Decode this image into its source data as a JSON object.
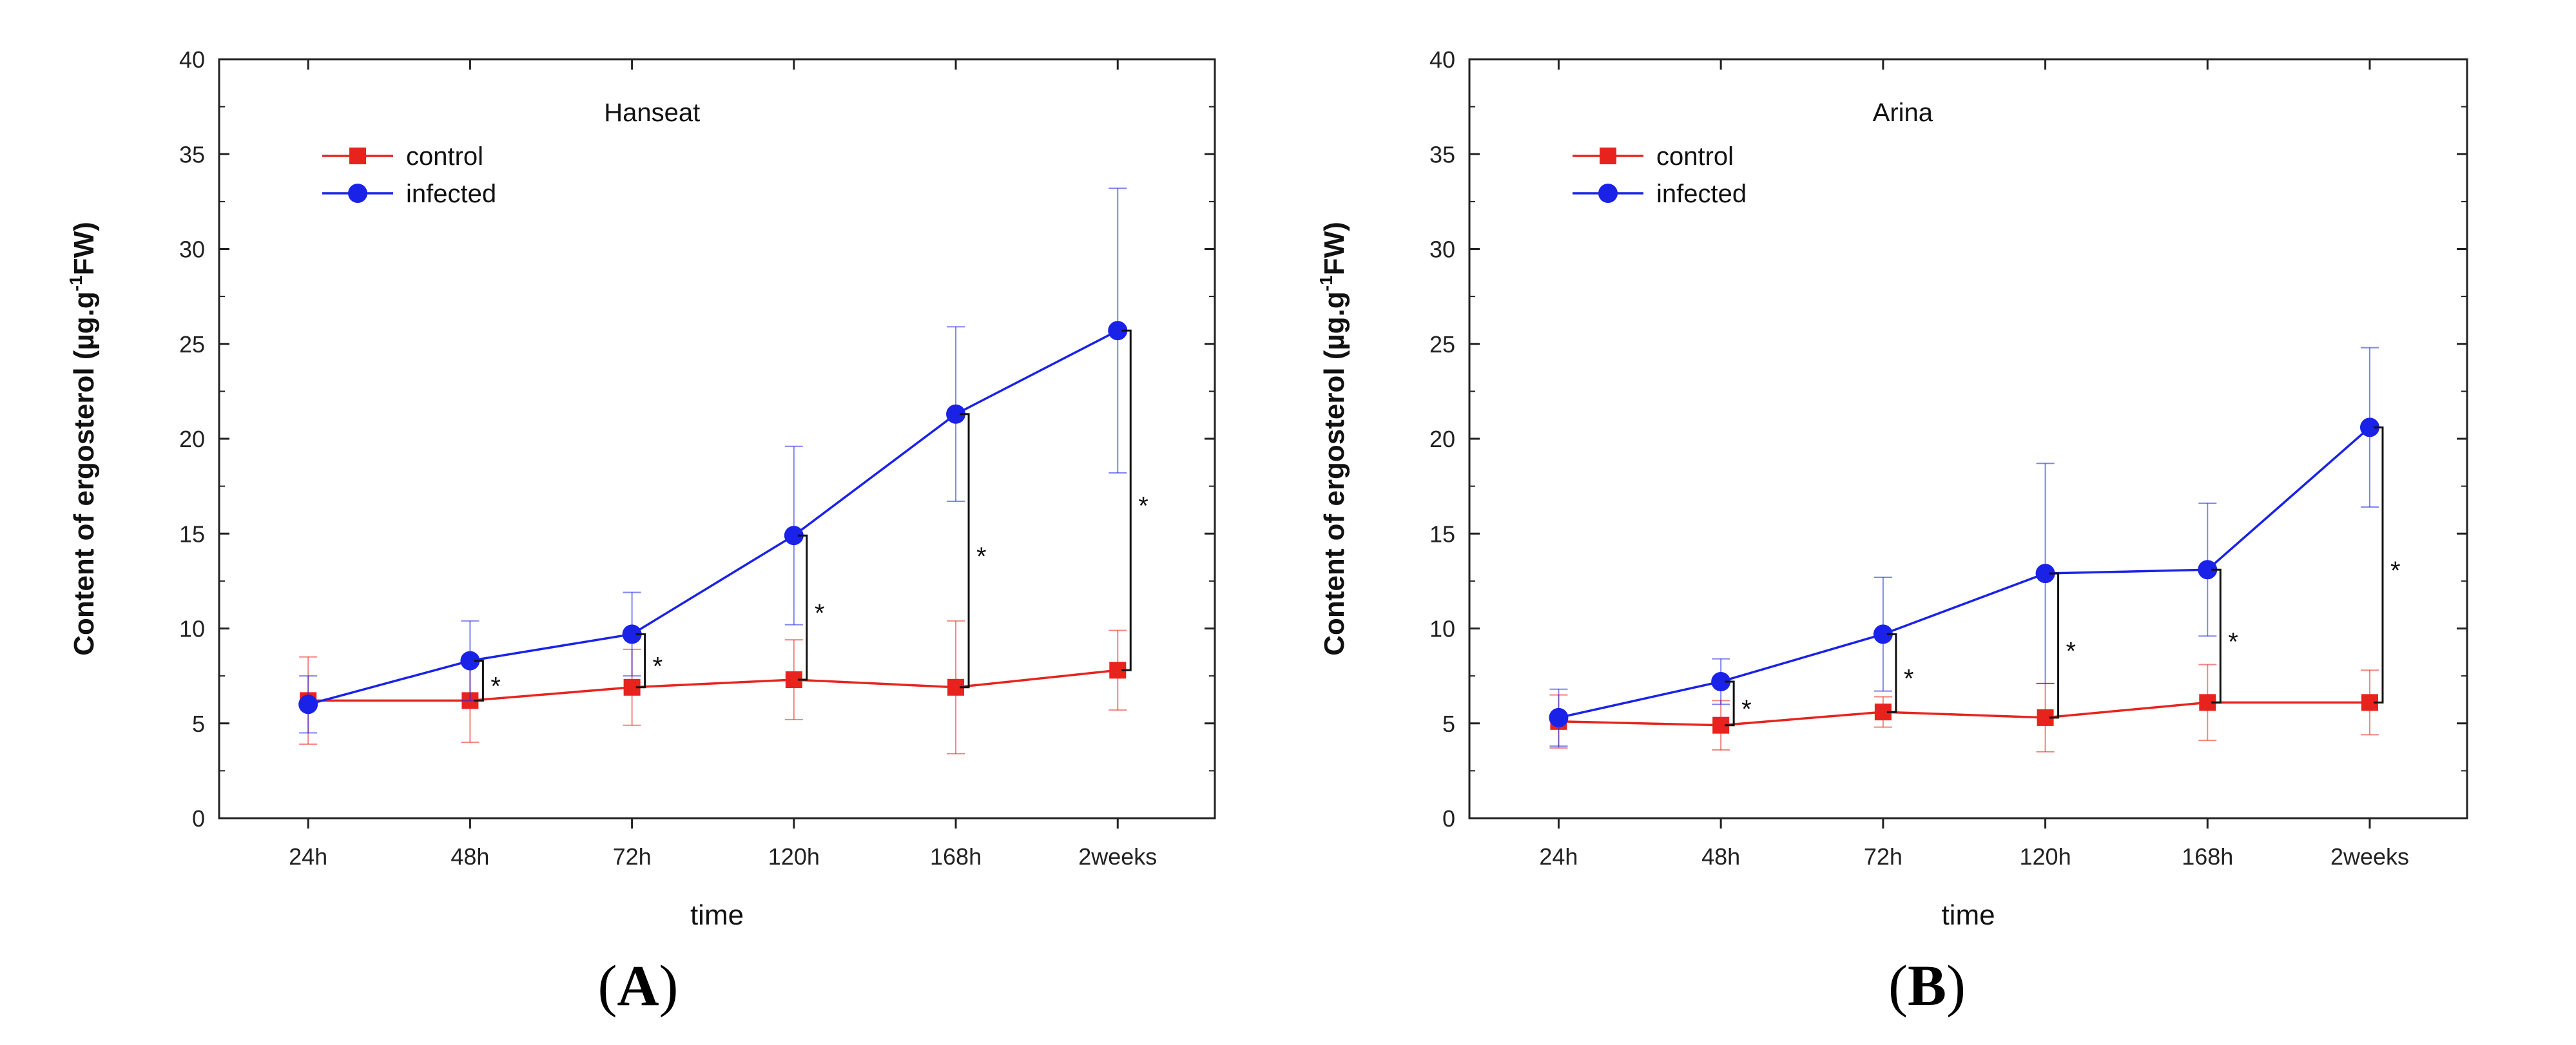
{
  "chart_data": [
    {
      "type": "line",
      "panel": "(A)",
      "panel_letter": "A",
      "title": "Hanseat",
      "xlabel": "time",
      "ylabel": "Content of ergosterol (µg.g-1FW)",
      "ylabel_parts": [
        "Content of ergosterol (µg.g",
        "-1",
        "FW)"
      ],
      "categories": [
        "24h",
        "48h",
        "72h",
        "120h",
        "168h",
        "2weeks"
      ],
      "ylim": [
        0,
        40
      ],
      "yticks": [
        0,
        5,
        10,
        15,
        20,
        25,
        30,
        35,
        40
      ],
      "legend_position": "top-left",
      "series": [
        {
          "name": "control",
          "color": "#e8231e",
          "marker": "square",
          "values": [
            6.2,
            6.2,
            6.9,
            7.3,
            6.9,
            7.8
          ],
          "errors": [
            2.3,
            2.2,
            2.0,
            2.1,
            3.5,
            2.1
          ]
        },
        {
          "name": "infected",
          "color": "#1a22e8",
          "marker": "circle",
          "values": [
            6.0,
            8.3,
            9.7,
            14.9,
            21.3,
            25.7
          ],
          "errors": [
            1.5,
            2.1,
            2.2,
            4.7,
            4.6,
            7.5
          ]
        }
      ],
      "significance": [
        "",
        "*",
        "*",
        "*",
        "*",
        "*"
      ]
    },
    {
      "type": "line",
      "panel": "(B)",
      "panel_letter": "B",
      "title": "Arina",
      "xlabel": "time",
      "ylabel": "Content of ergosterol (µg.g-1FW)",
      "ylabel_parts": [
        "Content of ergosterol (µg.g",
        "-1",
        "FW)"
      ],
      "categories": [
        "24h",
        "48h",
        "72h",
        "120h",
        "168h",
        "2weeks"
      ],
      "ylim": [
        0,
        40
      ],
      "yticks": [
        0,
        5,
        10,
        15,
        20,
        25,
        30,
        35,
        40
      ],
      "legend_position": "top-left",
      "series": [
        {
          "name": "control",
          "color": "#e8231e",
          "marker": "square",
          "values": [
            5.1,
            4.9,
            5.6,
            5.3,
            6.1,
            6.1
          ],
          "errors": [
            1.4,
            1.3,
            0.8,
            1.8,
            2.0,
            1.7
          ]
        },
        {
          "name": "infected",
          "color": "#1a22e8",
          "marker": "circle",
          "values": [
            5.3,
            7.2,
            9.7,
            12.9,
            13.1,
            20.6
          ],
          "errors": [
            1.5,
            1.2,
            3.0,
            5.8,
            3.5,
            4.2
          ]
        }
      ],
      "significance": [
        "",
        "*",
        "*",
        "*",
        "*",
        "*"
      ]
    }
  ]
}
